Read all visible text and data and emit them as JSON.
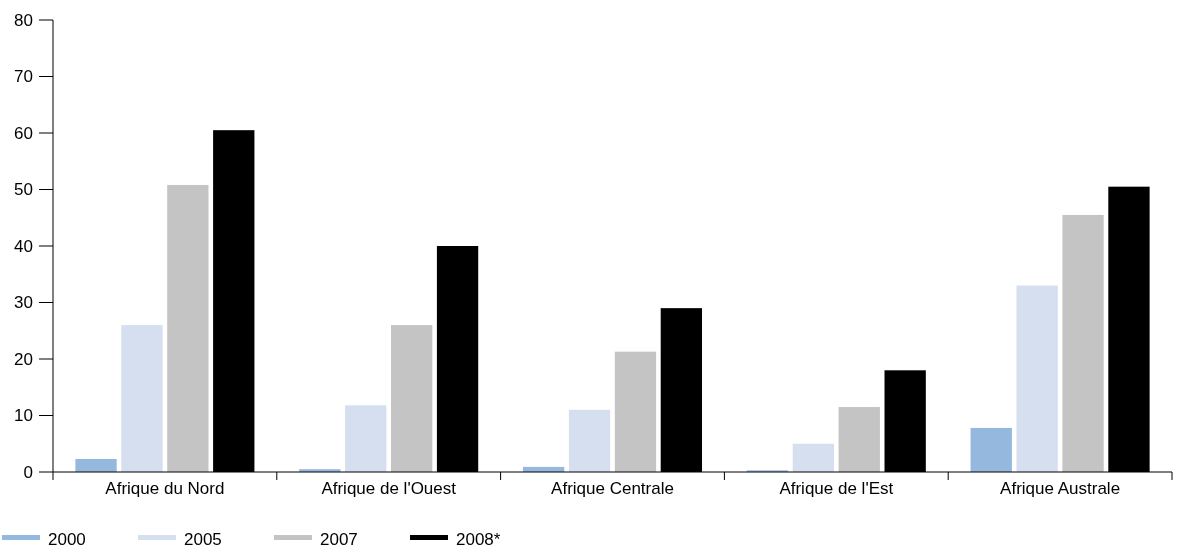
{
  "chart_data": {
    "type": "bar",
    "categories": [
      "Afrique du Nord",
      "Afrique de l'Ouest",
      "Afrique Centrale",
      "Afrique de l'Est",
      "Afrique Australe"
    ],
    "series": [
      {
        "name": "2000",
        "color": "#95b9de",
        "values": [
          2.3,
          0.5,
          0.9,
          0.3,
          7.8
        ]
      },
      {
        "name": "2005",
        "color": "#d5dff0",
        "values": [
          26,
          11.8,
          11,
          5,
          33
        ]
      },
      {
        "name": "2007",
        "color": "#c4c4c4",
        "values": [
          50.8,
          26,
          21.3,
          11.5,
          45.5
        ]
      },
      {
        "name": "2008*",
        "color": "#000000",
        "values": [
          60.5,
          40,
          29,
          18,
          50.5
        ]
      }
    ],
    "ylim": [
      0,
      80
    ],
    "yticks": [
      0,
      10,
      20,
      30,
      40,
      50,
      60,
      70,
      80
    ],
    "grid": false,
    "legend": "bottom left"
  }
}
